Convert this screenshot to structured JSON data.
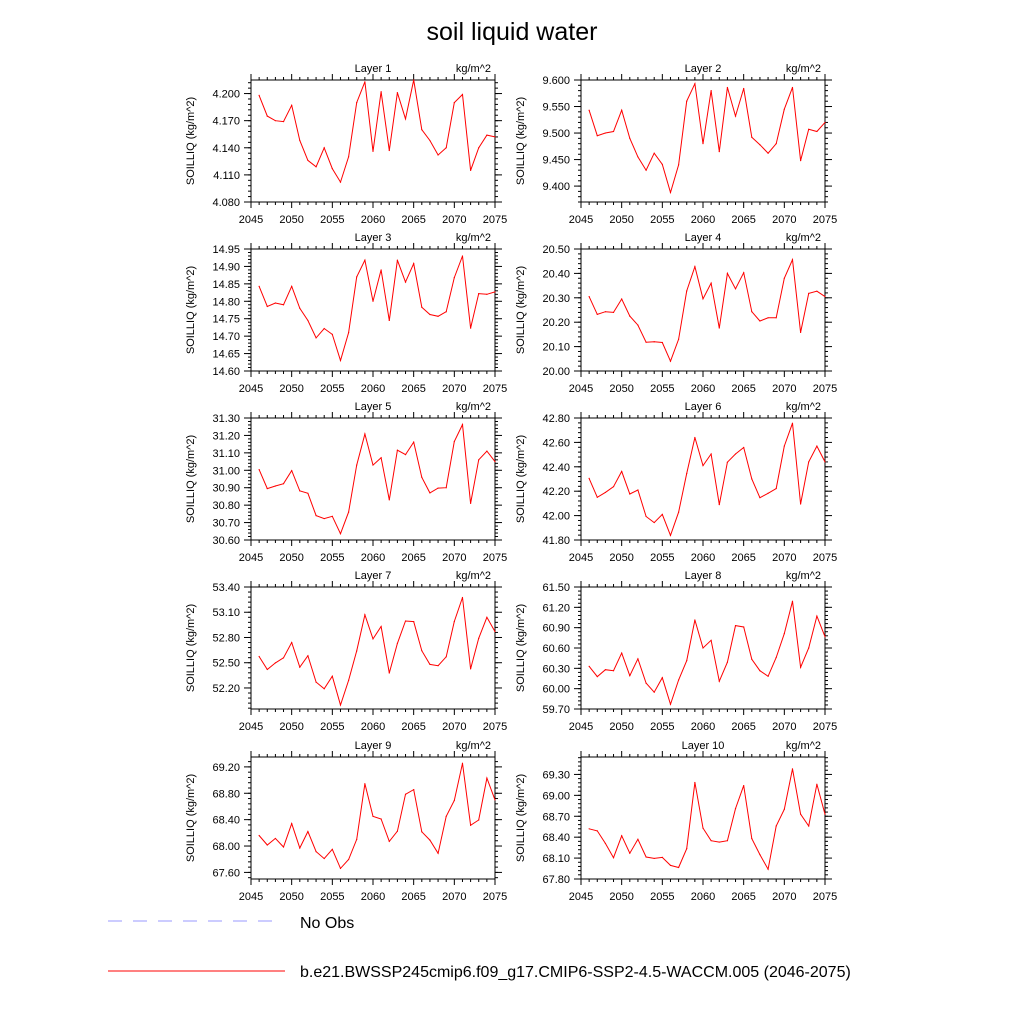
{
  "title": "soil liquid water",
  "units": "kg/m^2",
  "ylabel": "SOILLIQ  (kg/m^2)",
  "x_ticks": [
    2045,
    2050,
    2055,
    2060,
    2065,
    2070,
    2075
  ],
  "xlim": [
    2045,
    2075
  ],
  "colors": {
    "series": "#ff0000",
    "obs": "#9999ff",
    "axis": "#000000"
  },
  "legend": {
    "obs_label": "No Obs",
    "model_label": "b.e21.BWSSP245cmip6.f09_g17.CMIP6-SSP2-4.5-WACCM.005 (2046-2075)"
  },
  "chart_data": [
    {
      "type": "line",
      "title": "Layer 1",
      "ylim": [
        4.08,
        4.215
      ],
      "yticks": [
        "4.080",
        "4.110",
        "4.140",
        "4.170",
        "4.200"
      ],
      "x": [
        2046,
        2047,
        2048,
        2049,
        2050,
        2051,
        2052,
        2053,
        2054,
        2055,
        2056,
        2057,
        2058,
        2059,
        2060,
        2061,
        2062,
        2063,
        2064,
        2065,
        2066,
        2067,
        2068,
        2069,
        2070,
        2071,
        2072,
        2073,
        2074,
        2075
      ],
      "values": [
        4.198,
        4.175,
        4.17,
        4.169,
        4.187,
        4.148,
        4.126,
        4.119,
        4.14,
        4.117,
        4.102,
        4.13,
        4.19,
        4.213,
        4.136,
        4.202,
        4.137,
        4.201,
        4.172,
        4.215,
        4.16,
        4.148,
        4.132,
        4.14,
        4.19,
        4.199,
        4.115,
        4.14,
        4.154,
        4.152
      ]
    },
    {
      "type": "line",
      "title": "Layer 2",
      "ylim": [
        9.37,
        9.6
      ],
      "yticks": [
        "9.400",
        "9.450",
        "9.500",
        "9.550",
        "9.600"
      ],
      "x": [
        2046,
        2047,
        2048,
        2049,
        2050,
        2051,
        2052,
        2053,
        2054,
        2055,
        2056,
        2057,
        2058,
        2059,
        2060,
        2061,
        2062,
        2063,
        2064,
        2065,
        2066,
        2067,
        2068,
        2069,
        2070,
        2071,
        2072,
        2073,
        2074,
        2075
      ],
      "values": [
        9.543,
        9.495,
        9.5,
        9.503,
        9.543,
        9.49,
        9.455,
        9.43,
        9.462,
        9.441,
        9.388,
        9.44,
        9.56,
        9.593,
        9.48,
        9.58,
        9.465,
        9.586,
        9.532,
        9.584,
        9.492,
        9.478,
        9.462,
        9.48,
        9.545,
        9.586,
        9.448,
        9.507,
        9.503,
        9.52
      ]
    },
    {
      "type": "line",
      "title": "Layer 3",
      "ylim": [
        14.6,
        14.95
      ],
      "yticks": [
        "14.60",
        "14.65",
        "14.70",
        "14.75",
        "14.80",
        "14.85",
        "14.90",
        "14.95"
      ],
      "x": [
        2046,
        2047,
        2048,
        2049,
        2050,
        2051,
        2052,
        2053,
        2054,
        2055,
        2056,
        2057,
        2058,
        2059,
        2060,
        2061,
        2062,
        2063,
        2064,
        2065,
        2066,
        2067,
        2068,
        2069,
        2070,
        2071,
        2072,
        2073,
        2074,
        2075
      ],
      "values": [
        14.843,
        14.785,
        14.795,
        14.79,
        14.843,
        14.78,
        14.745,
        14.695,
        14.722,
        14.705,
        14.63,
        14.71,
        14.87,
        14.918,
        14.8,
        14.89,
        14.745,
        14.918,
        14.855,
        14.908,
        14.783,
        14.762,
        14.757,
        14.77,
        14.868,
        14.93,
        14.723,
        14.822,
        14.82,
        14.827
      ]
    },
    {
      "type": "line",
      "title": "Layer 4",
      "ylim": [
        20.0,
        20.5
      ],
      "yticks": [
        "20.00",
        "20.10",
        "20.20",
        "20.30",
        "20.40",
        "20.50"
      ],
      "x": [
        2046,
        2047,
        2048,
        2049,
        2050,
        2051,
        2052,
        2053,
        2054,
        2055,
        2056,
        2057,
        2058,
        2059,
        2060,
        2061,
        2062,
        2063,
        2064,
        2065,
        2066,
        2067,
        2068,
        2069,
        2070,
        2071,
        2072,
        2073,
        2074,
        2075
      ],
      "values": [
        20.305,
        20.232,
        20.243,
        20.24,
        20.295,
        20.225,
        20.188,
        20.118,
        20.12,
        20.117,
        20.04,
        20.13,
        20.328,
        20.428,
        20.296,
        20.36,
        20.176,
        20.4,
        20.337,
        20.403,
        20.243,
        20.205,
        20.218,
        20.218,
        20.38,
        20.456,
        20.158,
        20.318,
        20.327,
        20.305
      ]
    },
    {
      "type": "line",
      "title": "Layer 5",
      "ylim": [
        30.6,
        31.3
      ],
      "yticks": [
        "30.60",
        "30.70",
        "30.80",
        "30.90",
        "31.00",
        "31.10",
        "31.20",
        "31.30"
      ],
      "x": [
        2046,
        2047,
        2048,
        2049,
        2050,
        2051,
        2052,
        2053,
        2054,
        2055,
        2056,
        2057,
        2058,
        2059,
        2060,
        2061,
        2062,
        2063,
        2064,
        2065,
        2066,
        2067,
        2068,
        2069,
        2070,
        2071,
        2072,
        2073,
        2074,
        2075
      ],
      "values": [
        31.004,
        30.895,
        30.91,
        30.923,
        30.998,
        30.882,
        30.868,
        30.74,
        30.723,
        30.736,
        30.636,
        30.76,
        31.03,
        31.208,
        31.03,
        31.072,
        30.83,
        31.115,
        31.09,
        31.162,
        30.96,
        30.87,
        30.898,
        30.9,
        31.165,
        31.262,
        30.81,
        31.06,
        31.11,
        31.05
      ]
    },
    {
      "type": "line",
      "title": "Layer 6",
      "ylim": [
        41.8,
        42.8
      ],
      "yticks": [
        "41.80",
        "42.00",
        "42.20",
        "42.40",
        "42.60",
        "42.80"
      ],
      "x": [
        2046,
        2047,
        2048,
        2049,
        2050,
        2051,
        2052,
        2053,
        2054,
        2055,
        2056,
        2057,
        2058,
        2059,
        2060,
        2061,
        2062,
        2063,
        2064,
        2065,
        2066,
        2067,
        2068,
        2069,
        2070,
        2071,
        2072,
        2073,
        2074,
        2075
      ],
      "values": [
        42.305,
        42.15,
        42.19,
        42.237,
        42.362,
        42.177,
        42.21,
        41.993,
        41.943,
        42.01,
        41.838,
        42.028,
        42.345,
        42.64,
        42.41,
        42.505,
        42.09,
        42.438,
        42.505,
        42.558,
        42.3,
        42.147,
        42.183,
        42.222,
        42.57,
        42.757,
        42.095,
        42.44,
        42.57,
        42.44
      ]
    },
    {
      "type": "line",
      "title": "Layer 7",
      "ylim": [
        51.95,
        53.4
      ],
      "yticks": [
        "52.20",
        "52.50",
        "52.80",
        "53.10",
        "53.40"
      ],
      "x": [
        2046,
        2047,
        2048,
        2049,
        2050,
        2051,
        2052,
        2053,
        2054,
        2055,
        2056,
        2057,
        2058,
        2059,
        2060,
        2061,
        2062,
        2063,
        2064,
        2065,
        2066,
        2067,
        2068,
        2069,
        2070,
        2071,
        2072,
        2073,
        2074,
        2075
      ],
      "values": [
        52.574,
        52.42,
        52.498,
        52.558,
        52.74,
        52.447,
        52.583,
        52.27,
        52.19,
        52.34,
        51.998,
        52.29,
        52.64,
        53.07,
        52.783,
        52.93,
        52.378,
        52.73,
        52.996,
        52.989,
        52.643,
        52.48,
        52.465,
        52.57,
        52.99,
        53.275,
        52.427,
        52.79,
        53.04,
        52.87
      ]
    },
    {
      "type": "line",
      "title": "Layer 8",
      "ylim": [
        59.7,
        61.5
      ],
      "yticks": [
        "59.70",
        "60.00",
        "60.30",
        "60.60",
        "60.90",
        "61.20",
        "61.50"
      ],
      "x": [
        2046,
        2047,
        2048,
        2049,
        2050,
        2051,
        2052,
        2053,
        2054,
        2055,
        2056,
        2057,
        2058,
        2059,
        2060,
        2061,
        2062,
        2063,
        2064,
        2065,
        2066,
        2067,
        2068,
        2069,
        2070,
        2071,
        2072,
        2073,
        2074,
        2075
      ],
      "values": [
        60.33,
        60.178,
        60.28,
        60.265,
        60.525,
        60.192,
        60.44,
        60.082,
        59.948,
        60.162,
        59.77,
        60.128,
        60.413,
        61.013,
        60.6,
        60.713,
        60.11,
        60.39,
        60.93,
        60.91,
        60.433,
        60.265,
        60.183,
        60.46,
        60.812,
        61.29,
        60.315,
        60.6,
        61.07,
        60.766
      ]
    },
    {
      "type": "line",
      "title": "Layer 9",
      "ylim": [
        67.5,
        69.35
      ],
      "yticks": [
        "67.60",
        "68.00",
        "68.40",
        "68.80",
        "69.20"
      ],
      "x": [
        2046,
        2047,
        2048,
        2049,
        2050,
        2051,
        2052,
        2053,
        2054,
        2055,
        2056,
        2057,
        2058,
        2059,
        2060,
        2061,
        2062,
        2063,
        2064,
        2065,
        2066,
        2067,
        2068,
        2069,
        2070,
        2071,
        2072,
        2073,
        2074,
        2075
      ],
      "values": [
        68.16,
        68.015,
        68.115,
        67.985,
        68.34,
        67.97,
        68.22,
        67.915,
        67.81,
        67.95,
        67.66,
        67.795,
        68.1,
        68.945,
        68.45,
        68.41,
        68.07,
        68.225,
        68.785,
        68.855,
        68.215,
        68.09,
        67.89,
        68.45,
        68.69,
        69.255,
        68.315,
        68.395,
        69.03,
        68.7
      ]
    },
    {
      "type": "line",
      "title": "Layer 10",
      "ylim": [
        67.8,
        69.55
      ],
      "yticks": [
        "67.80",
        "68.10",
        "68.40",
        "68.70",
        "69.00",
        "69.30"
      ],
      "x": [
        2046,
        2047,
        2048,
        2049,
        2050,
        2051,
        2052,
        2053,
        2054,
        2055,
        2056,
        2057,
        2058,
        2059,
        2060,
        2061,
        2062,
        2063,
        2064,
        2065,
        2066,
        2067,
        2068,
        2069,
        2070,
        2071,
        2072,
        2073,
        2074,
        2075
      ],
      "values": [
        68.52,
        68.49,
        68.31,
        68.105,
        68.42,
        68.17,
        68.37,
        68.115,
        68.095,
        68.11,
        67.995,
        67.965,
        68.235,
        69.185,
        68.53,
        68.35,
        68.33,
        68.35,
        68.81,
        69.14,
        68.38,
        68.15,
        67.94,
        68.56,
        68.8,
        69.38,
        68.73,
        68.56,
        69.16,
        68.73
      ]
    }
  ]
}
